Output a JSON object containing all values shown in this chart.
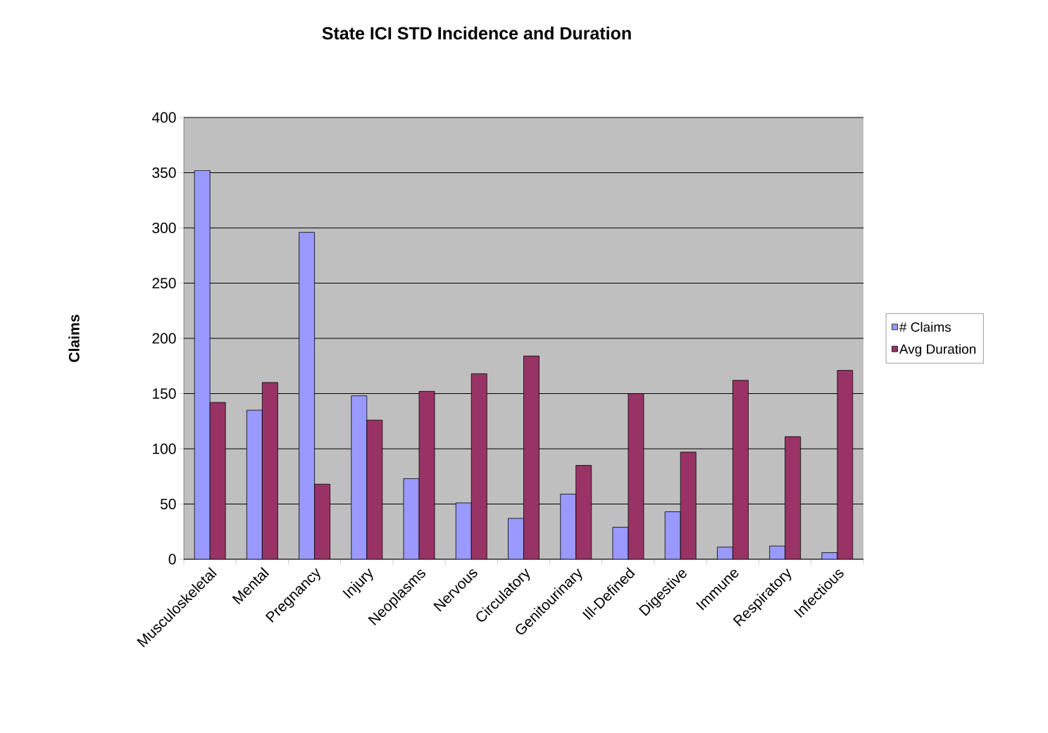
{
  "chart_data": {
    "type": "bar",
    "title": "State ICI STD Incidence and Duration",
    "ylabel": "Claims",
    "categories": [
      "Musculoskeletal",
      "Mental",
      "Pregnancy",
      "Injury",
      "Neoplasms",
      "Nervous",
      "Circulatory",
      "Genitourinary",
      "Ill-Defined",
      "Digestive",
      "Immune",
      "Respiratory",
      "Infectious"
    ],
    "series": [
      {
        "name": "# Claims",
        "color": "#9999ff",
        "values": [
          352,
          135,
          296,
          148,
          73,
          51,
          37,
          59,
          29,
          43,
          11,
          12,
          6
        ]
      },
      {
        "name": "Avg Duration",
        "color": "#993366",
        "values": [
          142,
          160,
          68,
          126,
          152,
          168,
          184,
          85,
          150,
          97,
          162,
          111,
          171
        ]
      }
    ],
    "ylim": [
      0,
      400
    ],
    "yticks": [
      0,
      50,
      100,
      150,
      200,
      250,
      300,
      350,
      400
    ],
    "grid": "y",
    "legend": "right"
  }
}
